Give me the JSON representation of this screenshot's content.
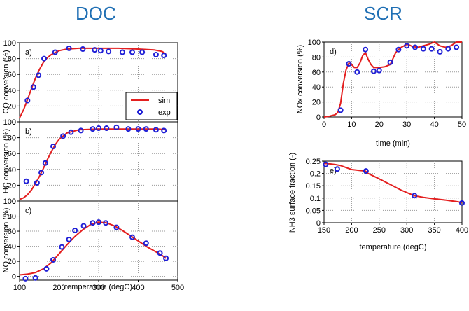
{
  "headings": {
    "doc": "DOC",
    "scr": "SCR"
  },
  "legend": {
    "sim": "sim",
    "exp": "exp"
  },
  "colors": {
    "sim": "#e41f1f",
    "exp": "#1f1fd6",
    "heading": "#1f6fb4"
  },
  "chart_data": [
    {
      "id": "co",
      "type": "line",
      "group": "DOC",
      "panel_label": "a)",
      "ylabel": "CO conve'sion (%)",
      "xlim": [
        100,
        500
      ],
      "ylim": [
        0,
        100
      ],
      "yticks": [
        "0",
        "20",
        "40",
        "60",
        "80",
        "100"
      ],
      "grid": true,
      "legend_position": "bottom-right",
      "series": [
        {
          "name": "sim",
          "style": "line",
          "x": [
            100,
            110,
            120,
            130,
            140,
            150,
            160,
            170,
            180,
            200,
            220,
            250,
            300,
            350,
            400,
            440,
            460,
            470
          ],
          "y": [
            5,
            15,
            28,
            42,
            55,
            66,
            75,
            81,
            85,
            90,
            92,
            93,
            93,
            93,
            92,
            91,
            89,
            86
          ]
        },
        {
          "name": "exp",
          "style": "marker",
          "x": [
            120,
            135,
            148,
            162,
            190,
            225,
            260,
            290,
            305,
            325,
            360,
            385,
            410,
            445,
            465
          ],
          "y": [
            27,
            44,
            59,
            80,
            88,
            93,
            92,
            91,
            90,
            89,
            88,
            88,
            88,
            85,
            84
          ]
        }
      ]
    },
    {
      "id": "hc",
      "type": "line",
      "group": "DOC",
      "panel_label": "b)",
      "ylabel": "HC conversion (%)",
      "xlim": [
        100,
        500
      ],
      "ylim": [
        0,
        100
      ],
      "yticks": [
        "0",
        "20",
        "40",
        "60",
        "80",
        "100"
      ],
      "grid": true,
      "series": [
        {
          "name": "sim",
          "style": "line",
          "x": [
            100,
            110,
            120,
            130,
            140,
            150,
            160,
            170,
            180,
            190,
            200,
            220,
            250,
            300,
            350,
            400,
            450,
            470
          ],
          "y": [
            2,
            4,
            8,
            14,
            22,
            31,
            41,
            52,
            62,
            71,
            78,
            86,
            90,
            91,
            91,
            91,
            91,
            90
          ]
        },
        {
          "name": "exp",
          "style": "marker",
          "x": [
            117,
            144,
            155,
            165,
            185,
            210,
            230,
            255,
            285,
            300,
            320,
            345,
            375,
            400,
            420,
            445,
            465
          ],
          "y": [
            25,
            23,
            36,
            48,
            69,
            82,
            87,
            89,
            91,
            92,
            92,
            93,
            91,
            91,
            91,
            90,
            89
          ]
        }
      ]
    },
    {
      "id": "no",
      "type": "line",
      "group": "DOC",
      "panel_label": "c)",
      "ylabel": "NO conversion (%)",
      "xlabel": "temperature (degC)",
      "xlim": [
        100,
        500
      ],
      "ylim": [
        -5,
        100
      ],
      "xticks": [
        "100",
        "200",
        "300",
        "400",
        "500"
      ],
      "yticks": [
        "0",
        "20",
        "40",
        "60",
        "80",
        "100"
      ],
      "ytick_values": [
        0,
        20,
        40,
        60,
        80,
        100
      ],
      "grid": true,
      "series": [
        {
          "name": "sim",
          "style": "line",
          "x": [
            100,
            120,
            140,
            160,
            180,
            200,
            220,
            240,
            260,
            280,
            300,
            320,
            340,
            360,
            380,
            400,
            420,
            440,
            460,
            470
          ],
          "y": [
            2,
            3,
            5,
            10,
            18,
            30,
            42,
            53,
            62,
            69,
            72,
            71,
            67,
            61,
            54,
            47,
            40,
            34,
            28,
            24
          ]
        },
        {
          "name": "exp",
          "style": "marker",
          "x": [
            115,
            140,
            168,
            185,
            207,
            225,
            240,
            262,
            285,
            300,
            318,
            345,
            385,
            420,
            455,
            470
          ],
          "y": [
            -3,
            -2,
            10,
            22,
            39,
            49,
            61,
            67,
            71,
            72,
            71,
            65,
            52,
            44,
            31,
            24
          ]
        }
      ]
    },
    {
      "id": "nox",
      "type": "line",
      "group": "SCR",
      "panel_label": "d)",
      "ylabel": "NOx conversion (%)",
      "xlabel": "time (min)",
      "xlim": [
        0,
        50
      ],
      "ylim": [
        0,
        100
      ],
      "xticks": [
        "0",
        "10",
        "20",
        "30",
        "40",
        "50"
      ],
      "yticks": [
        "0",
        "20",
        "40",
        "60",
        "80",
        "100"
      ],
      "grid": true,
      "series": [
        {
          "name": "sim",
          "style": "line",
          "x": [
            0,
            2,
            4,
            5,
            6,
            7,
            8,
            9,
            10,
            11,
            12,
            13,
            14,
            15,
            16,
            17,
            18,
            20,
            22,
            24,
            25,
            26,
            27,
            28,
            30,
            31,
            32,
            34,
            36,
            38,
            40,
            42,
            44,
            46,
            48,
            50
          ],
          "y": [
            0,
            1,
            3,
            6,
            18,
            45,
            63,
            72,
            70,
            66,
            66,
            72,
            82,
            86,
            77,
            70,
            66,
            66,
            67,
            70,
            78,
            86,
            90,
            93,
            97,
            96,
            94,
            93,
            95,
            97,
            100,
            95,
            93,
            95,
            100,
            100
          ]
        },
        {
          "name": "exp",
          "style": "marker",
          "x": [
            6,
            9,
            12,
            15,
            18,
            20,
            24,
            27,
            30,
            33,
            36,
            39,
            42,
            45,
            48
          ],
          "y": [
            9,
            71,
            60,
            90,
            61,
            62,
            73,
            90,
            95,
            93,
            91,
            91,
            87,
            91,
            93
          ]
        }
      ]
    },
    {
      "id": "nh3",
      "type": "line",
      "group": "SCR",
      "panel_label": "e)",
      "ylabel": "NH3 surface fraction (-)",
      "xlabel": "temperature (degC)",
      "xlim": [
        150,
        400
      ],
      "ylim": [
        0,
        0.25
      ],
      "xticks": [
        "150",
        "200",
        "250",
        "300",
        "350",
        "400"
      ],
      "yticks": [
        "0",
        "0.05",
        "0.1",
        "0.15",
        "0.2",
        "0.25"
      ],
      "grid": true,
      "series": [
        {
          "name": "sim",
          "style": "line",
          "x": [
            150,
            160,
            170,
            180,
            190,
            200,
            215,
            225,
            230,
            250,
            270,
            290,
            310,
            315,
            330,
            350,
            370,
            390,
            400
          ],
          "y": [
            0.241,
            0.239,
            0.236,
            0.232,
            0.224,
            0.216,
            0.212,
            0.21,
            0.2,
            0.178,
            0.155,
            0.132,
            0.113,
            0.109,
            0.103,
            0.097,
            0.092,
            0.086,
            0.082
          ]
        },
        {
          "name": "exp",
          "style": "marker",
          "x": [
            153,
            174,
            226,
            314,
            400
          ],
          "y": [
            0.237,
            0.218,
            0.21,
            0.11,
            0.08
          ]
        }
      ]
    }
  ]
}
